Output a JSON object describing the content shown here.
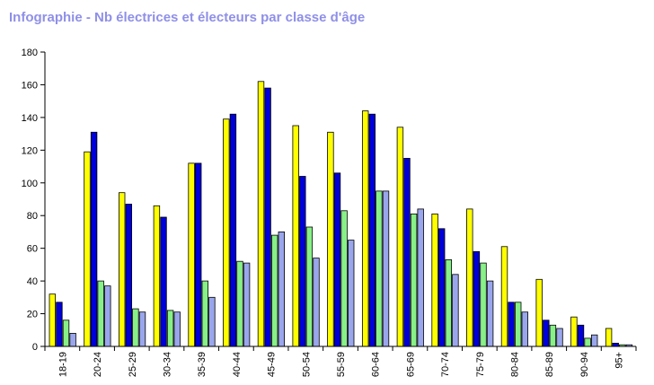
{
  "chart_data": {
    "type": "bar",
    "title": "Infographie - Nb électrices et électeurs par classe d'âge",
    "categories": [
      "18-19",
      "20-24",
      "25-29",
      "30-34",
      "35-39",
      "40-44",
      "45-49",
      "50-54",
      "55-59",
      "60-64",
      "65-69",
      "70-74",
      "75-79",
      "80-84",
      "85-89",
      "90-94",
      "95+"
    ],
    "series": [
      {
        "color": "#ffff00",
        "values": [
          32,
          119,
          94,
          86,
          112,
          139,
          162,
          135,
          131,
          144,
          134,
          81,
          84,
          61,
          41,
          18,
          11
        ]
      },
      {
        "color": "#0000d8",
        "values": [
          27,
          131,
          87,
          79,
          112,
          142,
          158,
          104,
          106,
          142,
          115,
          72,
          58,
          27,
          16,
          13,
          2
        ]
      },
      {
        "color": "#88f088",
        "values": [
          16,
          40,
          23,
          22,
          40,
          52,
          68,
          73,
          83,
          95,
          81,
          53,
          51,
          27,
          13,
          5,
          1
        ]
      },
      {
        "color": "#9aa6ec",
        "values": [
          8,
          37,
          21,
          21,
          30,
          51,
          70,
          54,
          65,
          95,
          84,
          44,
          40,
          21,
          11,
          7,
          1
        ]
      }
    ],
    "yticks": [
      "0",
      "20",
      "40",
      "60",
      "80",
      "100",
      "120",
      "140",
      "160",
      "180"
    ],
    "ylim": [
      0,
      180
    ],
    "grid": false,
    "legend": "none"
  }
}
